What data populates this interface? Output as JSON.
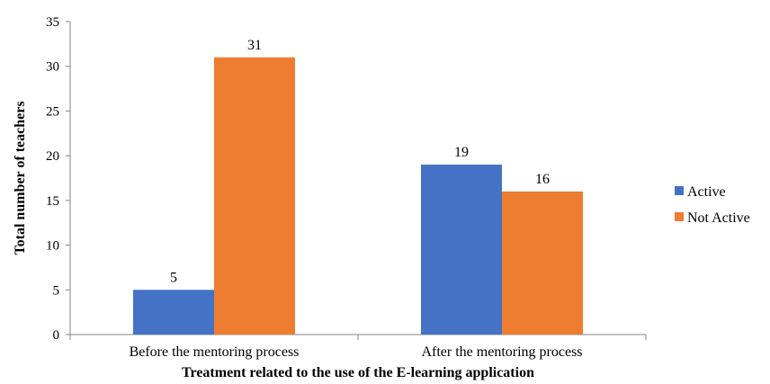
{
  "chart_data": {
    "type": "bar",
    "title": "",
    "categories": [
      "Before the mentoring process",
      "After the mentoring process"
    ],
    "series": [
      {
        "name": "Active",
        "values": [
          5,
          19
        ],
        "color": "#4472C4"
      },
      {
        "name": "Not Active",
        "values": [
          31,
          16
        ],
        "color": "#ED7D31"
      }
    ],
    "xlabel": "Treatment  related to the use of the E-learning  application",
    "ylabel": "Total number  of teachers",
    "ylim": [
      0,
      35
    ],
    "yticks": [
      0,
      5,
      10,
      15,
      20,
      25,
      30,
      35
    ],
    "grid": false,
    "legend": "right"
  }
}
